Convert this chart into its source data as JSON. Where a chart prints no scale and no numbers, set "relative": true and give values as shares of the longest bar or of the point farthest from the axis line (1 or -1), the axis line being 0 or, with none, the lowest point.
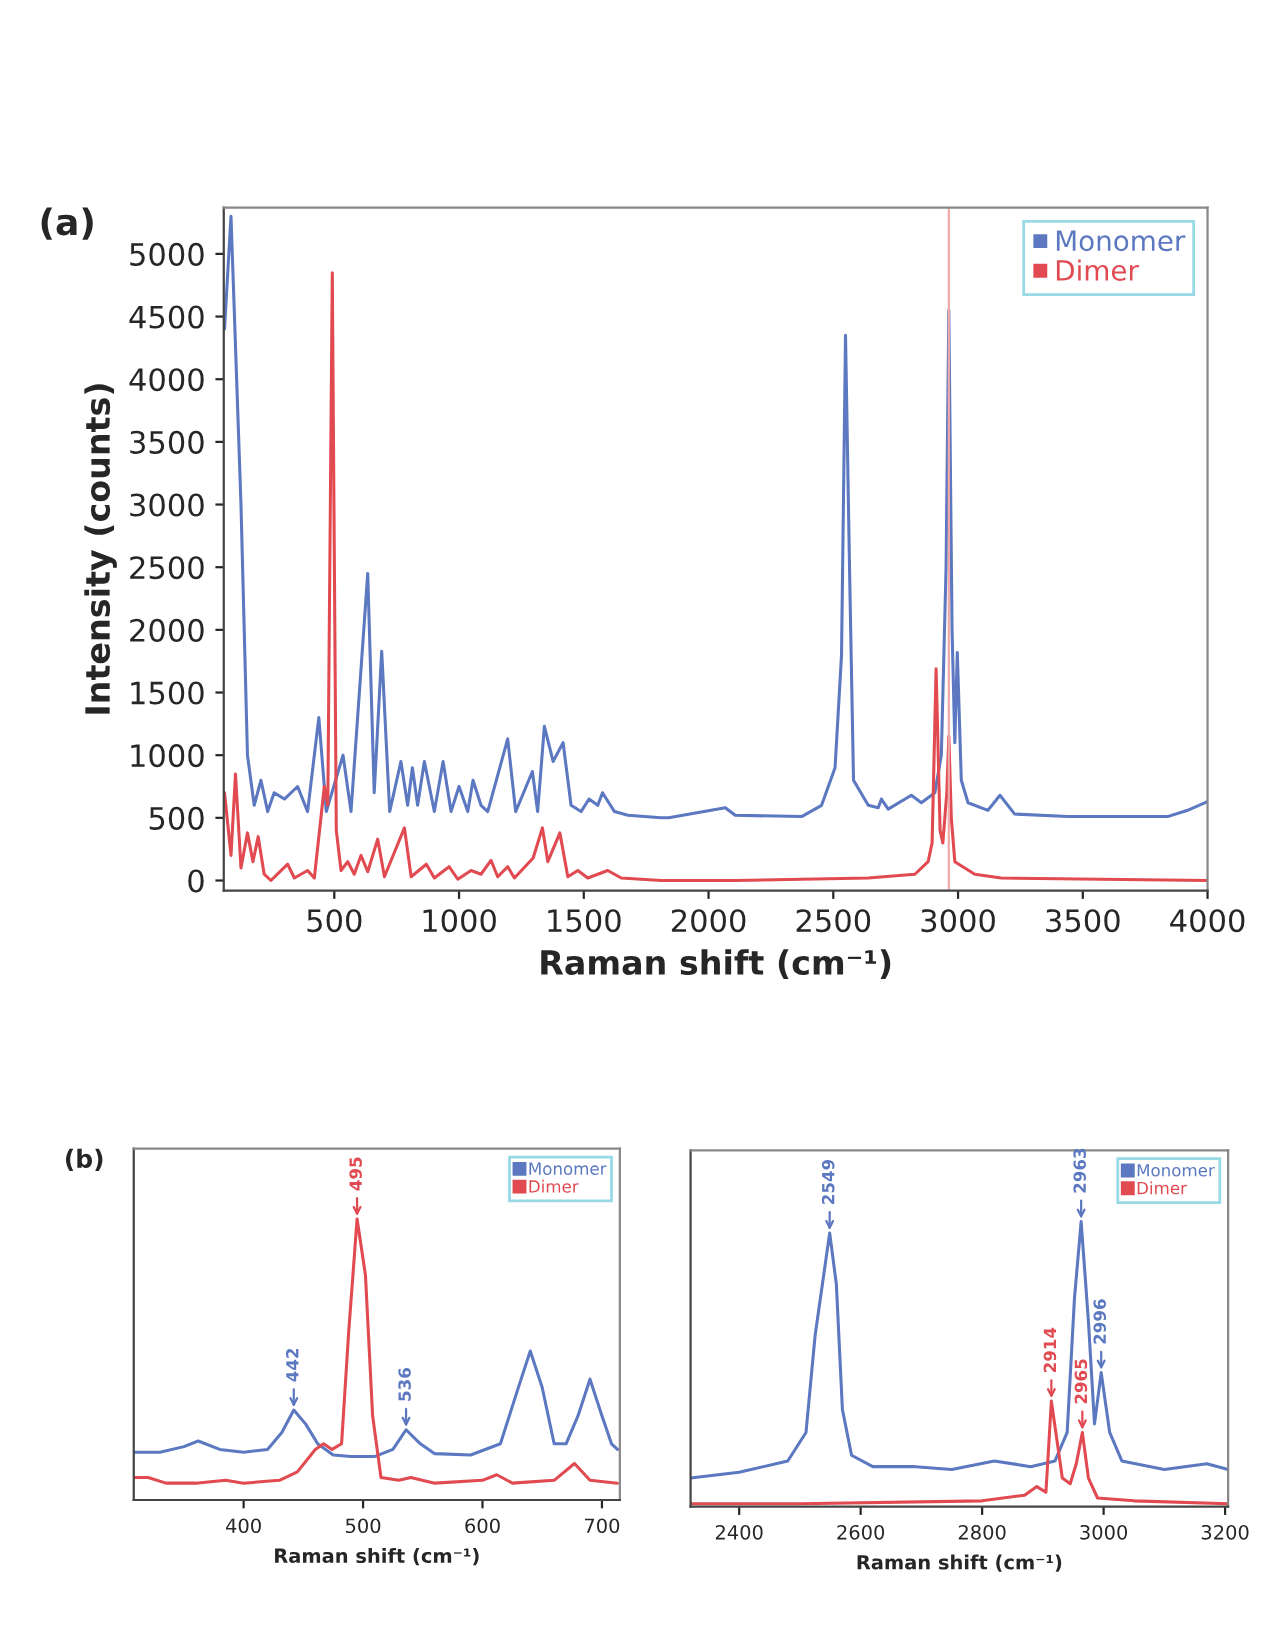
{
  "chart_data": [
    {
      "type": "line",
      "title": "(a)",
      "xlabel": "Raman shift (cm⁻¹)",
      "ylabel": "Intensity (counts)",
      "xlim": [
        57,
        4000
      ],
      "ylim": [
        -80,
        5370
      ],
      "xticks": [
        500,
        1000,
        1500,
        2000,
        2500,
        3000,
        3500,
        4000
      ],
      "yticks": [
        0,
        500,
        1000,
        1500,
        2000,
        2500,
        3000,
        3500,
        4000,
        4500,
        5000
      ],
      "grid": false,
      "legend": "top right",
      "marker": "none",
      "line_style": "solid",
      "ref_lines": [
        {
          "axis": "x",
          "value": 2963,
          "color": "#f0a8a8"
        }
      ],
      "series": [
        {
          "name": "Monomer",
          "color": "#5b78c0",
          "x": [
            60,
            86,
            126,
            152,
            179,
            206,
            233,
            259,
            300,
            353,
            393,
            438,
            468,
            535,
            567,
            634,
            660,
            690,
            722,
            767,
            794,
            813,
            834,
            861,
            901,
            936,
            968,
            1000,
            1035,
            1056,
            1088,
            1115,
            1195,
            1227,
            1294,
            1315,
            1342,
            1377,
            1417,
            1449,
            1489,
            1521,
            1556,
            1575,
            1623,
            1677,
            1810,
            1840,
            2067,
            2107,
            2373,
            2453,
            2507,
            2533,
            2549,
            2565,
            2581,
            2640,
            2680,
            2693,
            2720,
            2813,
            2853,
            2907,
            2933,
            2952,
            2963,
            2976,
            2987,
            2997,
            3013,
            3040,
            3120,
            3168,
            3227,
            3440,
            3840,
            3920,
            4000
          ],
          "values": [
            4400,
            5300,
            3000,
            1000,
            600,
            800,
            550,
            700,
            650,
            750,
            550,
            1300,
            550,
            1000,
            550,
            2450,
            700,
            1830,
            550,
            950,
            600,
            900,
            600,
            950,
            550,
            950,
            550,
            750,
            550,
            800,
            600,
            550,
            1130,
            550,
            870,
            550,
            1230,
            950,
            1100,
            600,
            550,
            650,
            600,
            700,
            550,
            520,
            500,
            500,
            580,
            520,
            510,
            600,
            900,
            1800,
            4350,
            2500,
            800,
            600,
            580,
            650,
            570,
            680,
            620,
            700,
            1000,
            2500,
            4550,
            2000,
            1100,
            1820,
            800,
            620,
            560,
            680,
            530,
            510,
            510,
            560,
            630
          ]
        },
        {
          "name": "Dimer",
          "color": "#e04a50",
          "x": [
            60,
            86,
            104,
            126,
            152,
            174,
            195,
            219,
            246,
            313,
            340,
            393,
            420,
            460,
            474,
            492,
            508,
            527,
            554,
            580,
            607,
            634,
            674,
            701,
            781,
            808,
            869,
            901,
            960,
            995,
            1048,
            1088,
            1128,
            1155,
            1195,
            1222,
            1297,
            1334,
            1356,
            1404,
            1436,
            1476,
            1516,
            1596,
            1650,
            1810,
            2107,
            2640,
            2827,
            2880,
            2896,
            2912,
            2928,
            2939,
            2955,
            2963,
            2973,
            2987,
            3067,
            3173,
            4000
          ],
          "values": [
            700,
            200,
            850,
            100,
            380,
            150,
            350,
            50,
            0,
            130,
            20,
            80,
            20,
            750,
            600,
            4850,
            400,
            80,
            150,
            50,
            200,
            70,
            330,
            30,
            420,
            30,
            130,
            20,
            110,
            10,
            80,
            50,
            160,
            30,
            110,
            20,
            180,
            420,
            150,
            380,
            30,
            80,
            20,
            80,
            20,
            0,
            0,
            20,
            50,
            150,
            300,
            1690,
            400,
            300,
            700,
            1150,
            500,
            150,
            50,
            20,
            0
          ]
        }
      ]
    },
    {
      "type": "line",
      "title": "(b)",
      "xlabel": "Raman shift (cm⁻¹)",
      "relative": true,
      "xlim": [
        308,
        715
      ],
      "xticks": [
        400,
        500,
        600,
        700
      ],
      "grid": false,
      "legend": "top right",
      "marker": "none",
      "line_style": "solid",
      "annotations": [
        {
          "text": "442",
          "x": 442,
          "y": 0.32
        },
        {
          "text": "495",
          "x": 495,
          "y": 1.0
        },
        {
          "text": "536",
          "x": 536,
          "y": 0.25
        }
      ],
      "series": [
        {
          "name": "Monomer",
          "color": "#5b78c0",
          "x": [
            308,
            330,
            350,
            362,
            380,
            400,
            420,
            432,
            442,
            452,
            462,
            475,
            490,
            510,
            525,
            536,
            548,
            560,
            590,
            615,
            630,
            640,
            650,
            660,
            670,
            680,
            690,
            700,
            708,
            713
          ],
          "values": [
            0.17,
            0.17,
            0.19,
            0.21,
            0.18,
            0.17,
            0.18,
            0.24,
            0.32,
            0.27,
            0.2,
            0.16,
            0.155,
            0.155,
            0.18,
            0.25,
            0.2,
            0.165,
            0.16,
            0.2,
            0.4,
            0.53,
            0.4,
            0.2,
            0.2,
            0.3,
            0.43,
            0.3,
            0.2,
            0.18
          ]
        },
        {
          "name": "Dimer",
          "color": "#e04a50",
          "x": [
            308,
            320,
            335,
            360,
            385,
            400,
            430,
            445,
            460,
            467,
            474,
            482,
            488,
            495,
            502,
            508,
            515,
            530,
            540,
            560,
            600,
            612,
            625,
            660,
            677,
            690,
            713
          ],
          "values": [
            0.08,
            0.08,
            0.06,
            0.06,
            0.07,
            0.06,
            0.07,
            0.1,
            0.18,
            0.2,
            0.18,
            0.2,
            0.6,
            1.0,
            0.8,
            0.3,
            0.08,
            0.07,
            0.08,
            0.06,
            0.07,
            0.09,
            0.06,
            0.07,
            0.13,
            0.07,
            0.06
          ]
        }
      ]
    },
    {
      "type": "line",
      "xlabel": "Raman shift (cm⁻¹)",
      "relative": true,
      "xlim": [
        2320,
        3205
      ],
      "xticks": [
        2400,
        2600,
        2800,
        3000,
        3200
      ],
      "grid": false,
      "legend": "top right",
      "marker": "none",
      "line_style": "solid",
      "annotations": [
        {
          "text": "2549",
          "x": 2549,
          "y": 0.96
        },
        {
          "text": "2963",
          "x": 2963,
          "y": 1.0
        },
        {
          "text": "2996",
          "x": 2996,
          "y": 0.47
        },
        {
          "text": "2914",
          "x": 2914,
          "y": 0.37
        },
        {
          "text": "2965",
          "x": 2965,
          "y": 0.26
        }
      ],
      "series": [
        {
          "name": "Monomer",
          "color": "#5b78c0",
          "x": [
            2320,
            2400,
            2480,
            2510,
            2525,
            2549,
            2560,
            2570,
            2585,
            2620,
            2690,
            2750,
            2820,
            2880,
            2920,
            2940,
            2952,
            2963,
            2975,
            2985,
            2996,
            3010,
            3030,
            3100,
            3170,
            3205
          ],
          "values": [
            0.1,
            0.12,
            0.16,
            0.26,
            0.6,
            0.96,
            0.78,
            0.34,
            0.18,
            0.14,
            0.14,
            0.13,
            0.16,
            0.14,
            0.16,
            0.26,
            0.73,
            1.0,
            0.65,
            0.29,
            0.47,
            0.26,
            0.16,
            0.13,
            0.15,
            0.13
          ]
        },
        {
          "name": "Dimer",
          "color": "#e04a50",
          "x": [
            2320,
            2500,
            2800,
            2870,
            2890,
            2905,
            2914,
            2922,
            2932,
            2945,
            2955,
            2965,
            2975,
            2990,
            3050,
            3205
          ],
          "values": [
            0.01,
            0.01,
            0.02,
            0.04,
            0.07,
            0.05,
            0.37,
            0.25,
            0.1,
            0.08,
            0.15,
            0.26,
            0.1,
            0.03,
            0.02,
            0.01
          ]
        }
      ]
    }
  ]
}
